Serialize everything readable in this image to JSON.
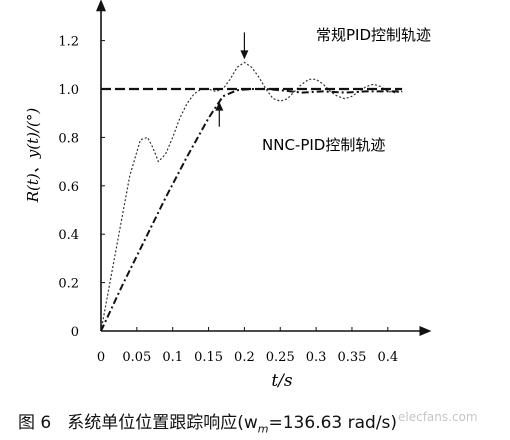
{
  "chart_data": {
    "type": "line",
    "x_ticks": [
      "0",
      "0.05",
      "0.1",
      "0.15",
      "0.2",
      "0.25",
      "0.3",
      "0.35",
      "0.4"
    ],
    "y_ticks": [
      "0",
      "0.2",
      "0.4",
      "0.6",
      "0.8",
      "1.0",
      "1.2"
    ],
    "xlabel": "t/s",
    "ylabel": "R(t)、y(t)/(°)",
    "xlim": [
      0,
      0.44
    ],
    "ylim": [
      0,
      1.35
    ],
    "grid": false,
    "series": [
      {
        "name": "常规PID控制轨迹",
        "style": "thin-dotted",
        "color": "#333333",
        "x": [
          0,
          0.02,
          0.04,
          0.055,
          0.065,
          0.072,
          0.08,
          0.09,
          0.1,
          0.11,
          0.12,
          0.13,
          0.14,
          0.15,
          0.16,
          0.17,
          0.18,
          0.19,
          0.2,
          0.21,
          0.22,
          0.23,
          0.24,
          0.25,
          0.26,
          0.27,
          0.28,
          0.29,
          0.3,
          0.31,
          0.32,
          0.33,
          0.34,
          0.35,
          0.36,
          0.37,
          0.38,
          0.39,
          0.4,
          0.41,
          0.42
        ],
        "y": [
          0,
          0.32,
          0.64,
          0.79,
          0.8,
          0.76,
          0.7,
          0.73,
          0.8,
          0.88,
          0.94,
          0.98,
          1.0,
          1.0,
          0.99,
          1.0,
          1.04,
          1.09,
          1.11,
          1.09,
          1.05,
          1.0,
          0.96,
          0.95,
          0.96,
          0.99,
          1.02,
          1.04,
          1.04,
          1.02,
          0.99,
          0.97,
          0.96,
          0.97,
          0.99,
          1.01,
          1.02,
          1.01,
          0.99,
          0.985,
          0.99
        ]
      },
      {
        "name": "NNC-PID控制轨迹",
        "style": "dash-dot",
        "color": "#111111",
        "x": [
          0,
          0.03,
          0.06,
          0.09,
          0.12,
          0.15,
          0.17,
          0.19,
          0.21,
          0.23,
          0.25,
          0.28,
          0.31,
          0.34,
          0.37,
          0.4,
          0.42
        ],
        "y": [
          0,
          0.19,
          0.37,
          0.55,
          0.72,
          0.88,
          0.97,
          0.995,
          1.0,
          1.0,
          0.995,
          0.985,
          0.99,
          0.985,
          0.99,
          0.99,
          0.99
        ]
      },
      {
        "name": "",
        "style": "reference-dashed",
        "color": "#111111",
        "x": [
          0,
          0.42
        ],
        "y": [
          1.0,
          1.0
        ]
      }
    ],
    "annotations": [
      {
        "text": "常规PID控制轨迹",
        "arrow_to": [
          0.2,
          1.11
        ]
      },
      {
        "text": "NNC-PID控制轨迹",
        "arrow_to": [
          0.165,
          0.96
        ]
      }
    ]
  },
  "caption": {
    "figure_number": "图 6",
    "text": "系统单位位置跟踪响应(w",
    "subscript": "m",
    "text_after": "=136.63 rad/s)"
  },
  "watermark": "elecfans.com"
}
